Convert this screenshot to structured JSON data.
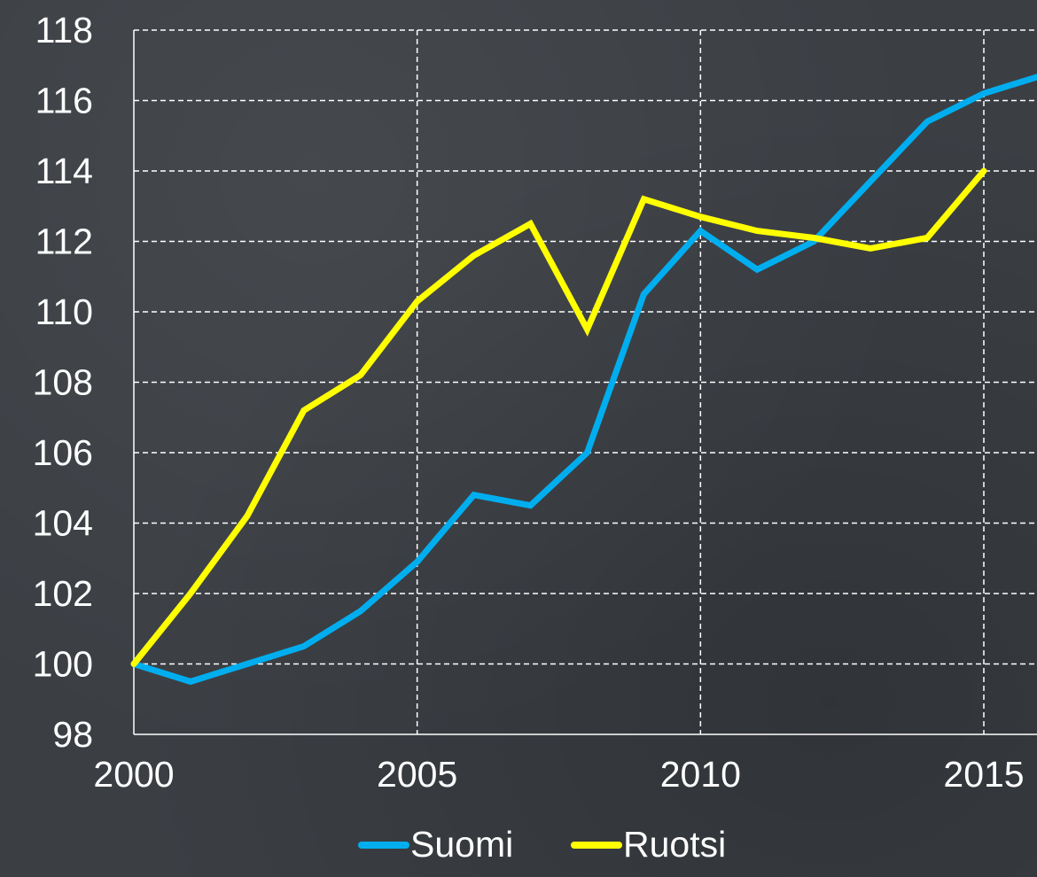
{
  "chart_data": {
    "type": "line",
    "title": "",
    "xlabel": "",
    "ylabel": "",
    "xlim": [
      2000,
      2016
    ],
    "ylim": [
      98,
      118
    ],
    "x_ticks": [
      2000,
      2005,
      2010,
      2015
    ],
    "y_ticks": [
      98,
      100,
      102,
      104,
      106,
      108,
      110,
      112,
      114,
      116,
      118
    ],
    "grid": true,
    "legend_position": "bottom",
    "series": [
      {
        "name": "Suomi",
        "color": "#00aeef",
        "x": [
          2000,
          2001,
          2002,
          2003,
          2004,
          2005,
          2006,
          2007,
          2008,
          2009,
          2010,
          2011,
          2012,
          2013,
          2014,
          2015,
          2016
        ],
        "values": [
          100.0,
          99.5,
          100.0,
          100.5,
          101.5,
          102.9,
          104.8,
          104.5,
          106.0,
          110.5,
          112.3,
          111.2,
          112.0,
          113.7,
          115.4,
          116.2,
          116.7
        ]
      },
      {
        "name": "Ruotsi",
        "color": "#ffff00",
        "x": [
          2000,
          2001,
          2002,
          2003,
          2004,
          2005,
          2006,
          2007,
          2008,
          2009,
          2010,
          2011,
          2012,
          2013,
          2014,
          2015
        ],
        "values": [
          100.0,
          102.0,
          104.2,
          107.2,
          108.2,
          110.3,
          111.6,
          112.5,
          109.5,
          113.2,
          112.7,
          112.3,
          112.1,
          111.8,
          112.1,
          114.0
        ]
      }
    ]
  }
}
